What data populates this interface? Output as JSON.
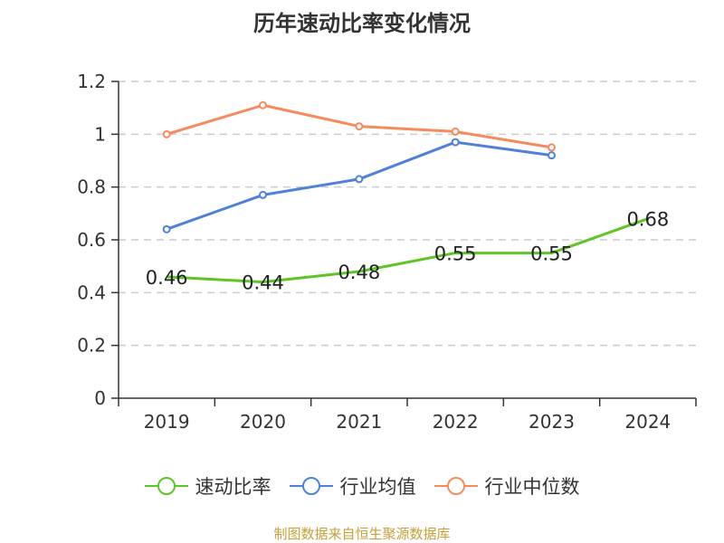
{
  "chart_data": {
    "type": "line",
    "title": "历年速动比率变化情况",
    "categories": [
      "2019",
      "2020",
      "2021",
      "2022",
      "2023",
      "2024"
    ],
    "ylim": [
      0,
      1.2
    ],
    "yticks": [
      0,
      0.2,
      0.4,
      0.6,
      0.8,
      1,
      1.2
    ],
    "ytick_labels": [
      "0",
      "0.2",
      "0.4",
      "0.6",
      "0.8",
      "1",
      "1.2"
    ],
    "grid": "dashed horizontal",
    "legend_position": "bottom",
    "series": [
      {
        "name": "速动比率",
        "color": "#5ec524",
        "values": [
          0.46,
          0.44,
          0.48,
          0.55,
          0.55,
          0.68
        ],
        "data_labels": [
          "0.46",
          "0.44",
          "0.48",
          "0.55",
          "0.55",
          "0.68"
        ]
      },
      {
        "name": "行业均值",
        "color": "#4f81d9",
        "values": [
          0.64,
          0.77,
          0.83,
          0.97,
          0.92,
          null
        ]
      },
      {
        "name": "行业中位数",
        "color": "#f68a5c",
        "values": [
          1.0,
          1.11,
          1.03,
          1.01,
          0.95,
          null
        ]
      }
    ]
  },
  "source": "制图数据来自恒生聚源数据库"
}
